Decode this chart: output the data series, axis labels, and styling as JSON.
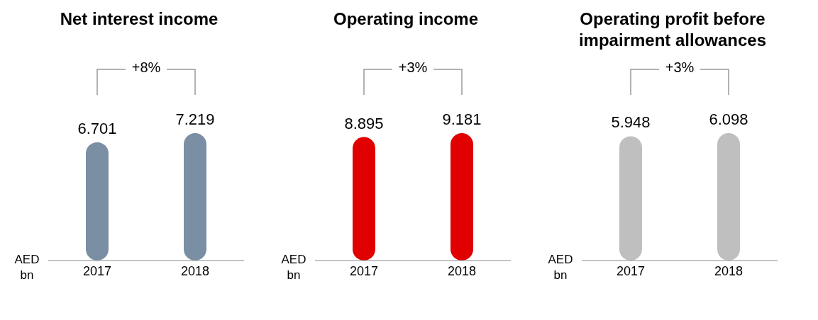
{
  "chart_data": [
    {
      "type": "bar",
      "title": "Net interest income",
      "ylabel": "AED bn",
      "categories": [
        "2017",
        "2018"
      ],
      "values": [
        6.701,
        7.219
      ],
      "color": "#7a8fa3",
      "data_labels": true,
      "annotations": [
        "+8%"
      ]
    },
    {
      "type": "bar",
      "title": "Operating income",
      "ylabel": "AED bn",
      "categories": [
        "2017",
        "2018"
      ],
      "values": [
        8.895,
        9.181
      ],
      "color": "#e00000",
      "data_labels": true,
      "annotations": [
        "+3%"
      ]
    },
    {
      "type": "bar",
      "title": "Operating profit before impairment allowances",
      "ylabel": "AED bn",
      "categories": [
        "2017",
        "2018"
      ],
      "values": [
        5.948,
        6.098
      ],
      "color": "#bfbfbf",
      "data_labels": true,
      "annotations": [
        "+3%"
      ]
    }
  ]
}
